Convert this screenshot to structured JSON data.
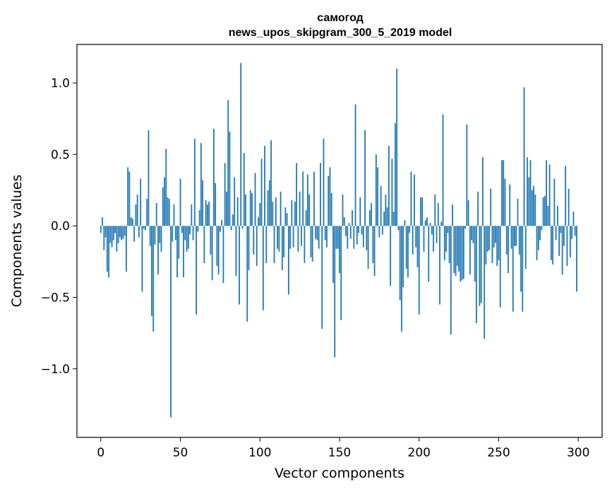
{
  "chart_data": {
    "type": "bar",
    "title_line1": "самогод",
    "title_line2": "news_upos_skipgram_300_5_2019 model",
    "xlabel": "Vector components",
    "ylabel": "Components values",
    "xlim": [
      -15,
      315
    ],
    "ylim": [
      -1.48,
      1.27
    ],
    "xticks": [
      0,
      50,
      100,
      150,
      200,
      250,
      300
    ],
    "yticks": [
      1.0,
      0.5,
      0.0,
      -0.5,
      -1.0
    ],
    "xtick_labels": [
      "0",
      "50",
      "100",
      "150",
      "200",
      "250",
      "300"
    ],
    "ytick_labels": [
      "1.0",
      "0.5",
      "0.0",
      "−0.5",
      "−1.0"
    ],
    "bar_color": "#1f77b4",
    "values": [
      -0.05,
      0.06,
      -0.17,
      -0.08,
      -0.32,
      -0.36,
      -0.12,
      -0.15,
      -0.1,
      -0.05,
      -0.18,
      -0.12,
      -0.08,
      -0.1,
      -0.09,
      -0.07,
      -0.32,
      0.41,
      0.38,
      0.06,
      0.05,
      -0.11,
      0.15,
      0.22,
      -0.08,
      0.33,
      -0.46,
      -0.02,
      -0.03,
      0.19,
      0.67,
      -0.14,
      -0.63,
      -0.74,
      -0.13,
      0.16,
      -0.34,
      -0.12,
      -0.18,
      0.27,
      0.34,
      0.54,
      0.2,
      0.19,
      -1.34,
      -0.11,
      0.15,
      -0.1,
      -0.36,
      -0.23,
      0.33,
      -0.05,
      -0.36,
      -0.1,
      -0.18,
      -0.16,
      -0.06,
      0.15,
      -0.1,
      0.61,
      -0.62,
      -0.04,
      0.11,
      0.58,
      0.32,
      -0.26,
      0.18,
      0.15,
      0.17,
      -0.2,
      -0.38,
      0.68,
      0.3,
      -0.28,
      -0.34,
      -0.04,
      0.04,
      -0.4,
      0.44,
      0.24,
      0.88,
      0.66,
      -0.03,
      0.08,
      0.34,
      -0.35,
      0.2,
      -0.55,
      1.14,
      -0.02,
      0.51,
      0.22,
      -0.67,
      -0.31,
      0.25,
      0.23,
      -0.2,
      0.37,
      -0.28,
      0.06,
      0.16,
      0.47,
      -0.59,
      0.56,
      -0.26,
      0.25,
      0.32,
      0.6,
      0.17,
      -0.26,
      0.2,
      -0.16,
      -0.18,
      0.24,
      -0.31,
      -0.22,
      0.13,
      0.09,
      -0.48,
      -0.16,
      0.18,
      -0.15,
      0.17,
      0.44,
      -0.18,
      0.24,
      -0.14,
      0.38,
      -0.26,
      0.11,
      0.36,
      0.22,
      -0.22,
      -0.25,
      0.38,
      -0.09,
      -0.1,
      -0.16,
      0.44,
      -0.72,
      0.61,
      -0.1,
      -0.15,
      0.35,
      0.41,
      0.23,
      -0.4,
      -0.92,
      -0.16,
      -0.16,
      -0.33,
      -0.66,
      0.22,
      0.06,
      -0.07,
      -0.16,
      0.02,
      -0.09,
      0.11,
      -0.16,
      0.85,
      -0.13,
      -0.05,
      0.2,
      -0.06,
      -0.15,
      0.67,
      -0.17,
      -0.3,
      0.11,
      0.16,
      -0.26,
      -0.35,
      0.5,
      0.41,
      -0.08,
      0.28,
      -0.06,
      0.1,
      0.22,
      0.13,
      0.56,
      -0.42,
      0.47,
      0.1,
      0.72,
      1.1,
      -0.03,
      -0.52,
      -0.74,
      -0.43,
      0.04,
      -0.3,
      -0.36,
      -0.05,
      0.38,
      -0.2,
      0.36,
      -0.15,
      -0.29,
      -0.62,
      0.2,
      0.2,
      -0.18,
      0.04,
      0.06,
      -0.39,
      0.02,
      -0.06,
      -0.18,
      0.22,
      -0.12,
      0.16,
      -0.55,
      0.03,
      0.78,
      -0.24,
      -0.18,
      -0.05,
      -0.26,
      -0.76,
      0.15,
      -0.33,
      -0.35,
      -0.28,
      -0.32,
      -0.39,
      -0.38,
      -0.37,
      -0.02,
      0.71,
      0.18,
      -0.34,
      -0.1,
      -0.12,
      -0.39,
      -0.68,
      0.24,
      -0.56,
      -0.54,
      0.48,
      -0.79,
      -0.27,
      -0.18,
      -0.17,
      0.26,
      -0.26,
      -0.15,
      -0.12,
      -0.28,
      -0.24,
      -0.57,
      0.46,
      0.46,
      0.33,
      -0.2,
      -0.33,
      0.29,
      -0.16,
      -0.6,
      -0.14,
      -0.14,
      0.19,
      -0.2,
      -0.46,
      -0.6,
      0.97,
      -0.3,
      0.48,
      0.34,
      0.46,
      0.25,
      0.28,
      0.22,
      -0.24,
      -0.17,
      -0.1,
      -0.03,
      0.2,
      0.21,
      0.46,
      0.14,
      0.43,
      -0.24,
      -0.27,
      0.33,
      -0.1,
      0.14,
      -0.21,
      -0.05,
      -0.34,
      -0.14,
      0.42,
      -0.28,
      0.26,
      -0.22,
      -0.09,
      0.1,
      -0.07,
      -0.46
    ]
  }
}
